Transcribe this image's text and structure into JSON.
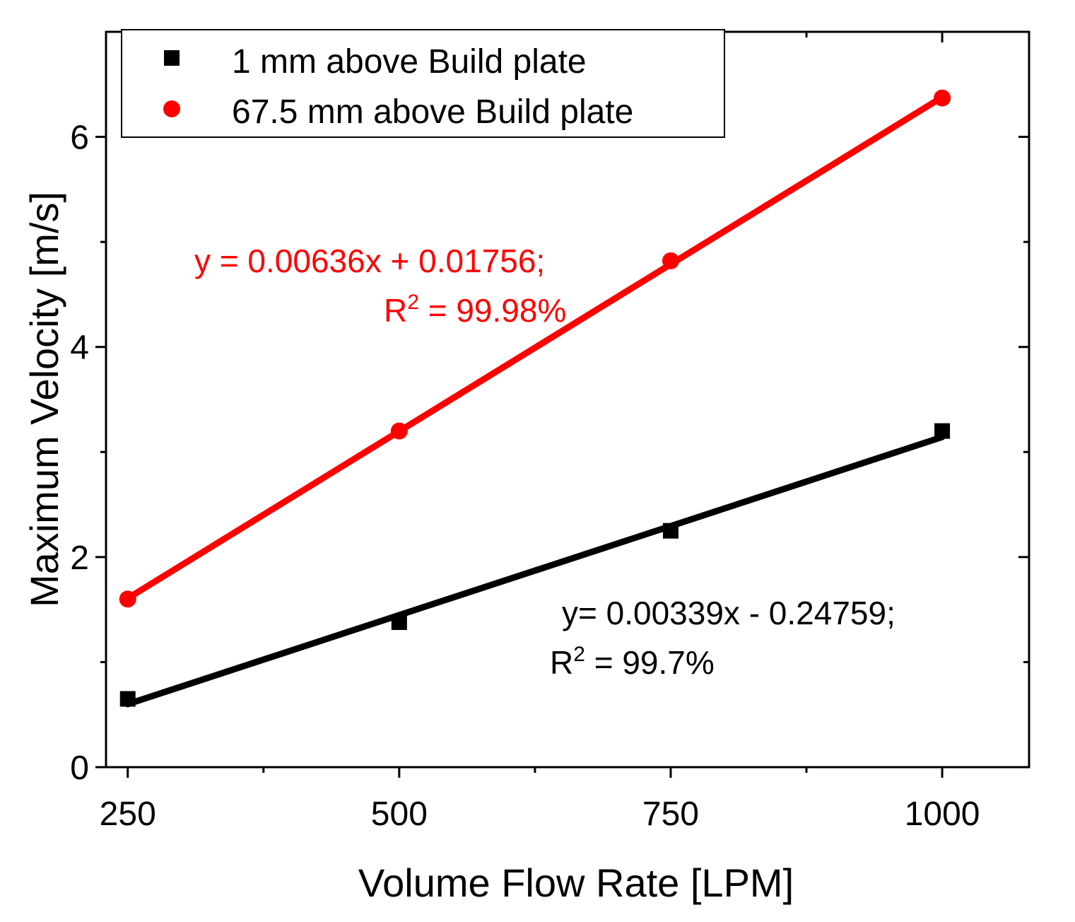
{
  "chart_data": {
    "type": "scatter",
    "title": "",
    "xlabel": "Volume Flow Rate [LPM]",
    "ylabel": "Maximum Velocity [m/s]",
    "xlim": [
      230,
      1080
    ],
    "ylim": [
      0,
      7
    ],
    "xticks": [
      250,
      500,
      750,
      1000
    ],
    "xtick_labels": [
      "250",
      "500",
      "750",
      "1000"
    ],
    "xminor": [
      375,
      625,
      875
    ],
    "yticks": [
      0,
      2,
      4,
      6
    ],
    "ytick_labels": [
      "0",
      "2",
      "4",
      "6"
    ],
    "yminor": [
      1,
      3,
      5
    ],
    "grid": false,
    "legend_position": "top-left",
    "series": [
      {
        "name": "1 mm above Build plate",
        "marker": "square",
        "color": "#000000",
        "x": [
          250,
          500,
          750,
          1000
        ],
        "y": [
          0.65,
          1.38,
          2.25,
          3.2
        ],
        "fit": {
          "slope": 0.00339,
          "intercept": -0.24759
        },
        "equation": "y= 0.00339x - 0.24759;",
        "r2_prefix": "R",
        "r2_sup": "2",
        "r2_value": " = 99.7%"
      },
      {
        "name": "67.5 mm above Build plate",
        "marker": "circle",
        "color": "#ff0000",
        "x": [
          250,
          500,
          750,
          1000
        ],
        "y": [
          1.6,
          3.2,
          4.82,
          6.37
        ],
        "fit": {
          "slope": 0.00636,
          "intercept": 0.01756
        },
        "equation": "y = 0.00636x + 0.01756;",
        "r2_prefix": "R",
        "r2_sup": "2",
        "r2_value": " = 99.98%"
      }
    ]
  }
}
